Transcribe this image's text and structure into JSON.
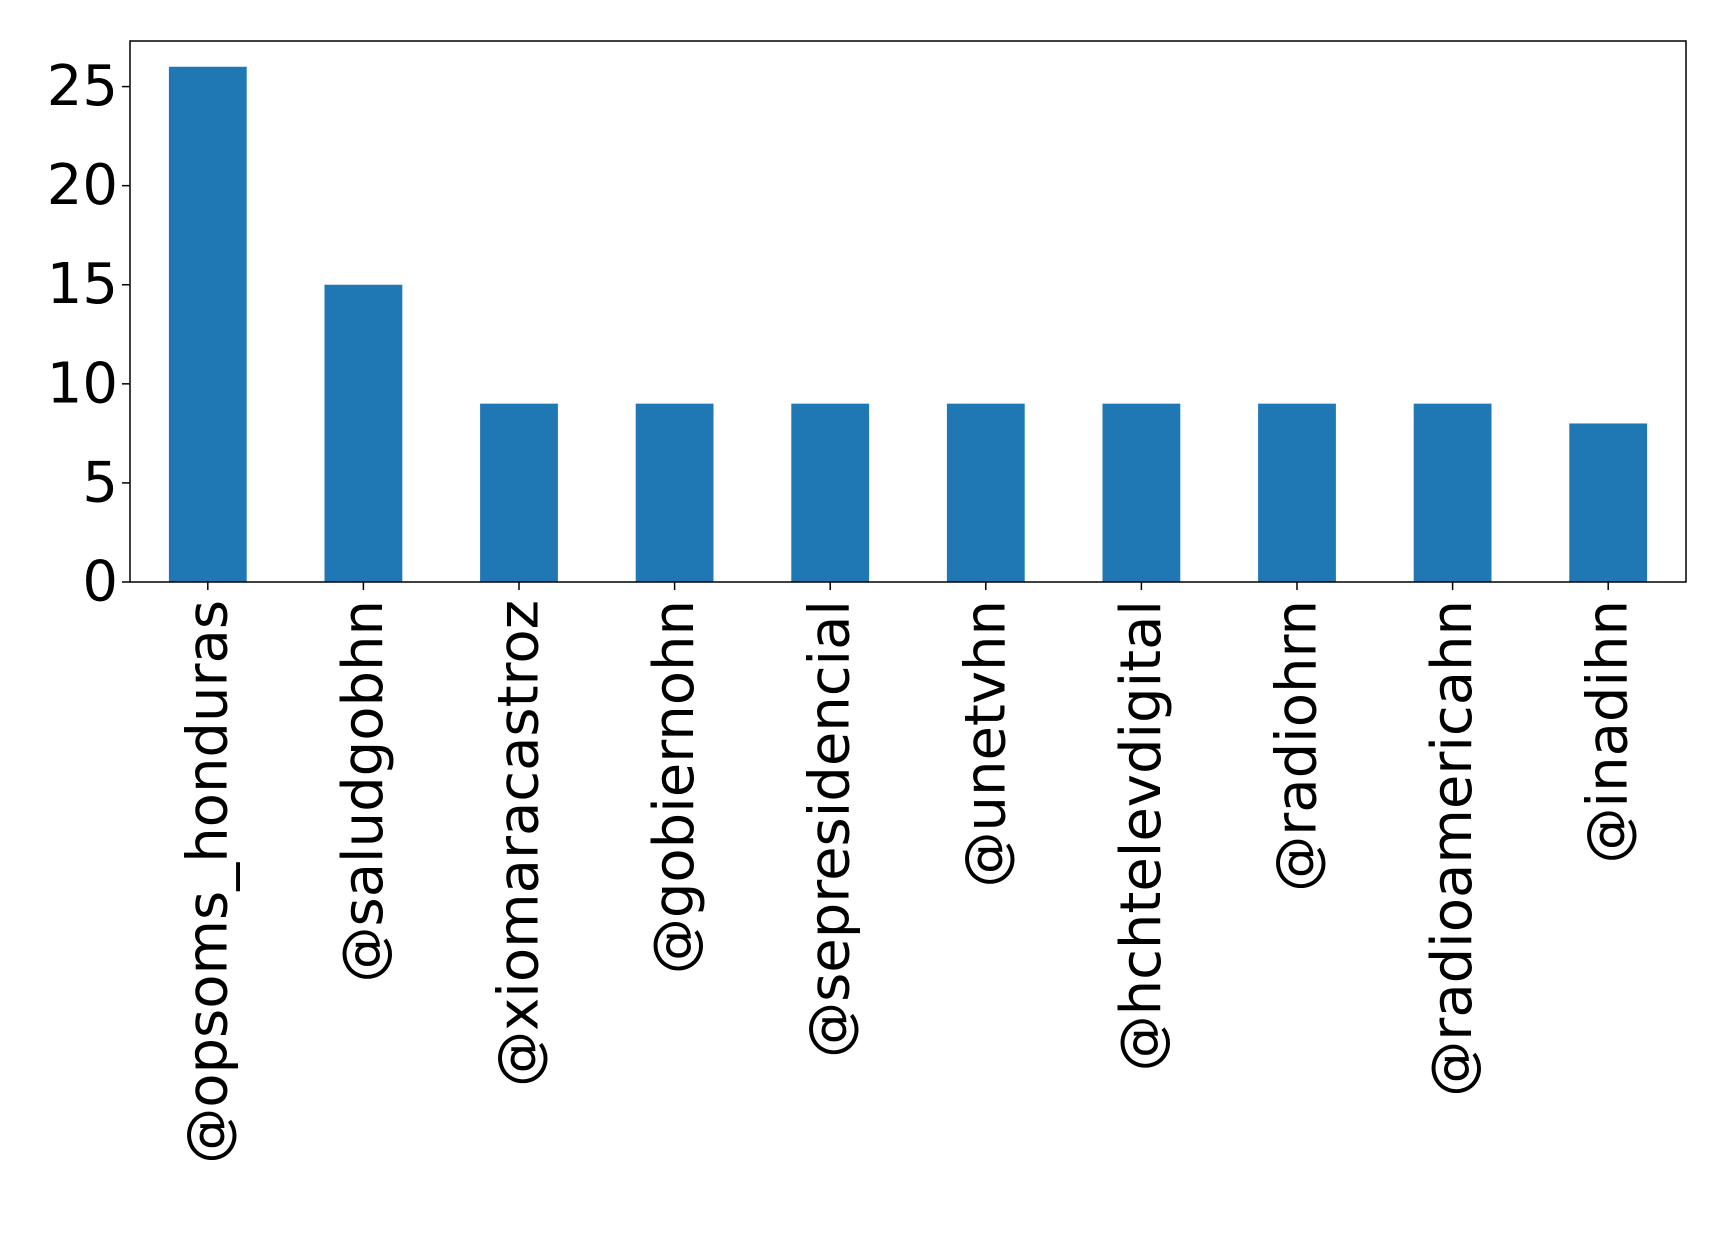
{
  "chart_data": {
    "type": "bar",
    "categories": [
      "@opsoms_honduras",
      "@saludgobhn",
      "@xiomaracastroz",
      "@gobiernohn",
      "@sepresidencial",
      "@unetvhn",
      "@hchtelevdigital",
      "@radiohrn",
      "@radioamericahn",
      "@inadihn"
    ],
    "values": [
      26,
      15,
      9,
      9,
      9,
      9,
      9,
      9,
      9,
      8
    ],
    "y_ticks": [
      0,
      5,
      10,
      15,
      20,
      25
    ],
    "ylim": [
      0,
      27.3
    ],
    "bar_color": "#1f77b4",
    "grid": false,
    "title": "",
    "xlabel": "",
    "ylabel": ""
  }
}
